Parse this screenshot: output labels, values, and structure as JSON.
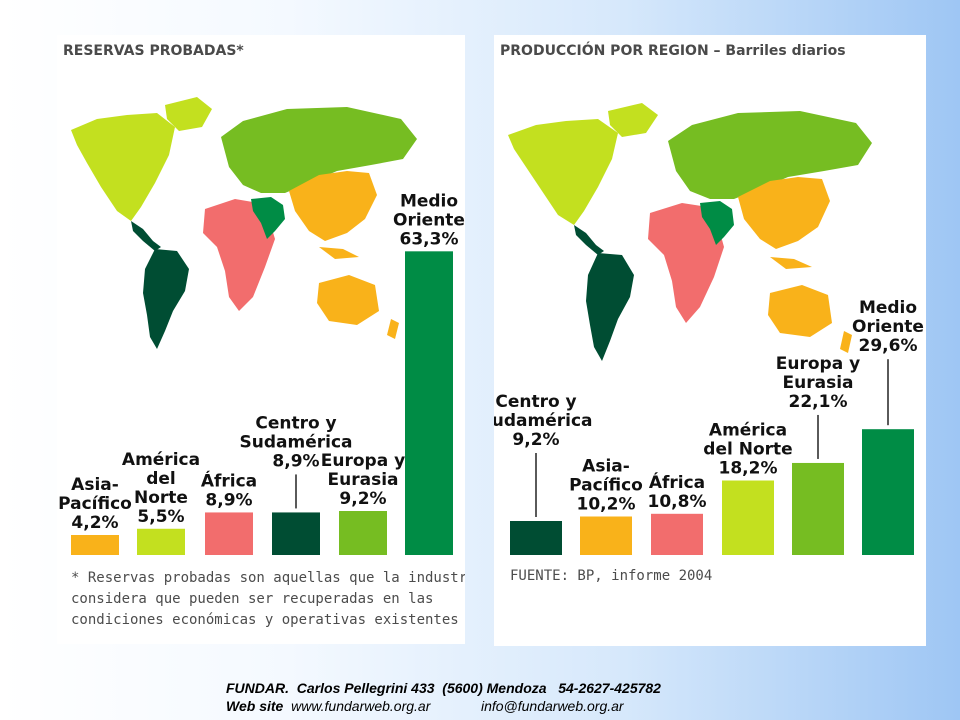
{
  "chart_data": [
    {
      "type": "bar",
      "title": "RESERVAS PROBADAS*",
      "unit": "%",
      "categories": [
        "Asia-Pacífico",
        "América del Norte",
        "África",
        "Centro y Sudamérica",
        "Europa y Eurasia",
        "Medio Oriente"
      ],
      "values": [
        4.2,
        5.5,
        8.9,
        8.9,
        9.2,
        63.3
      ],
      "value_labels": [
        "4,2%",
        "5,5%",
        "8,9%",
        "8,9%",
        "9,2%",
        "63,3%"
      ],
      "label_lines": [
        [
          "Asia-",
          "Pacífico",
          "4,2%"
        ],
        [
          "América",
          "del",
          "Norte",
          "5,5%"
        ],
        [
          "África",
          "8,9%"
        ],
        [
          "Centro y",
          "Sudamérica",
          "8,9%"
        ],
        [
          "Europa y",
          "Eurasia",
          "9,2%"
        ],
        [
          "Medio",
          "Oriente",
          "63,3%"
        ]
      ],
      "colors": [
        "#f9b21a",
        "#c3e01f",
        "#f26d6d",
        "#004d33",
        "#76bd22",
        "#008c45"
      ],
      "footnote": "* Reservas probadas son aquellas que la industria\nconsidera que pueden ser recuperadas en las\ncondiciones económicas y operativas existentes",
      "xlabel": "",
      "ylabel": "",
      "grid": false,
      "legend": "none"
    },
    {
      "type": "bar",
      "title": "PRODUCCIÓN POR REGION – Barriles diarios",
      "unit": "%",
      "categories": [
        "Centro y Sudamérica",
        "Asia-Pacífico",
        "África",
        "América del Norte",
        "Europa y Eurasia",
        "Medio Oriente"
      ],
      "values": [
        9.2,
        10.2,
        10.8,
        18.2,
        22.1,
        29.6
      ],
      "value_labels": [
        "9,2%",
        "10,2%",
        "10,8%",
        "18,2%",
        "22,1%",
        "29,6%"
      ],
      "label_lines": [
        [
          "Centro y",
          "Sudamérica",
          "9,2%"
        ],
        [
          "Asia-",
          "Pacífico",
          "10,2%"
        ],
        [
          "África",
          "10,8%"
        ],
        [
          "América",
          "del Norte",
          "18,2%"
        ],
        [
          "Europa y",
          "Eurasia",
          "22,1%"
        ],
        [
          "Medio",
          "Oriente",
          "29,6%"
        ]
      ],
      "colors": [
        "#004d33",
        "#f9b21a",
        "#f26d6d",
        "#c3e01f",
        "#76bd22",
        "#008c45"
      ],
      "source": "FUENTE: BP, informe 2004",
      "xlabel": "",
      "ylabel": "",
      "grid": false,
      "legend": "none"
    }
  ],
  "footer": {
    "org": "FUNDAR.",
    "address": "Carlos Pellegrini 433  (5600) Mendoza   54-2627-425782",
    "website_label": "Web site",
    "website": "www.fundarweb.org.ar",
    "email": "info@fundarweb.org.ar"
  },
  "map_colors": {
    "north_america": "#c3e01f",
    "south_america": "#004d33",
    "europe_eurasia": "#76bd22",
    "africa": "#f26d6d",
    "middle_east": "#008c45",
    "asia_pacific": "#f9b21a"
  }
}
